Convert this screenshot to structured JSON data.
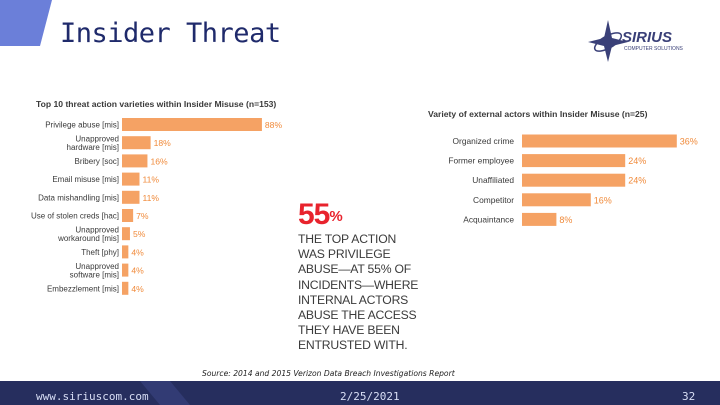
{
  "slide": {
    "title": "Insider Threat",
    "logo_name": "SIRIUS",
    "logo_tagline": "COMPUTER SOLUTIONS",
    "source": "Source: 2014 and 2015 Verizon Data Breach Investigations Report",
    "footer_url": "www.siriuscom.com",
    "footer_date": "2/25/2021",
    "page_number": "32",
    "callout_number": "55",
    "callout_percent": "%",
    "callout_lines": [
      "THE TOP ACTION",
      "WAS PRIVILEGE",
      "ABUSE—AT 55% OF",
      "INCIDENTS—WHERE",
      "INTERNAL ACTORS",
      "ABUSE THE ACCESS",
      "THEY HAVE BEEN",
      "ENTRUSTED WITH."
    ]
  },
  "colors": {
    "bar": "#f5a264",
    "value_label": "#f08a3a",
    "title_text": "#1f2a6b",
    "footer_bg": "#262e5e",
    "accent_red": "#e8232d"
  },
  "chart_data": [
    {
      "type": "bar",
      "orientation": "horizontal",
      "title": "Top 10 threat action varieties within Insider Misuse (n=153)",
      "categories": [
        [
          "Privilege abuse [mis]"
        ],
        [
          "Unapproved",
          "hardware [mis]"
        ],
        [
          "Bribery [soc]"
        ],
        [
          "Email misuse [mis]"
        ],
        [
          "Data mishandling [mis]"
        ],
        [
          "Use of stolen creds [hac]"
        ],
        [
          "Unapproved",
          "workaround [mis]"
        ],
        [
          "Theft [phy]"
        ],
        [
          "Unapproved",
          "software [mis]"
        ],
        [
          "Embezzlement [mis]"
        ]
      ],
      "values": [
        88,
        18,
        16,
        11,
        11,
        7,
        5,
        4,
        4,
        4
      ],
      "value_labels": [
        "88%",
        "18%",
        "16%",
        "11%",
        "11%",
        "7%",
        "5%",
        "4%",
        "4%",
        "4%"
      ],
      "xlim": [
        0,
        100
      ]
    },
    {
      "type": "bar",
      "orientation": "horizontal",
      "title": "Variety of external actors within Insider Misuse (n=25)",
      "categories": [
        [
          "Organized crime"
        ],
        [
          "Former employee"
        ],
        [
          "Unaffiliated"
        ],
        [
          "Competitor"
        ],
        [
          "Acquaintance"
        ]
      ],
      "values": [
        36,
        24,
        24,
        16,
        8
      ],
      "value_labels": [
        "36%",
        "24%",
        "24%",
        "16%",
        "8%"
      ],
      "xlim": [
        0,
        40
      ]
    }
  ]
}
